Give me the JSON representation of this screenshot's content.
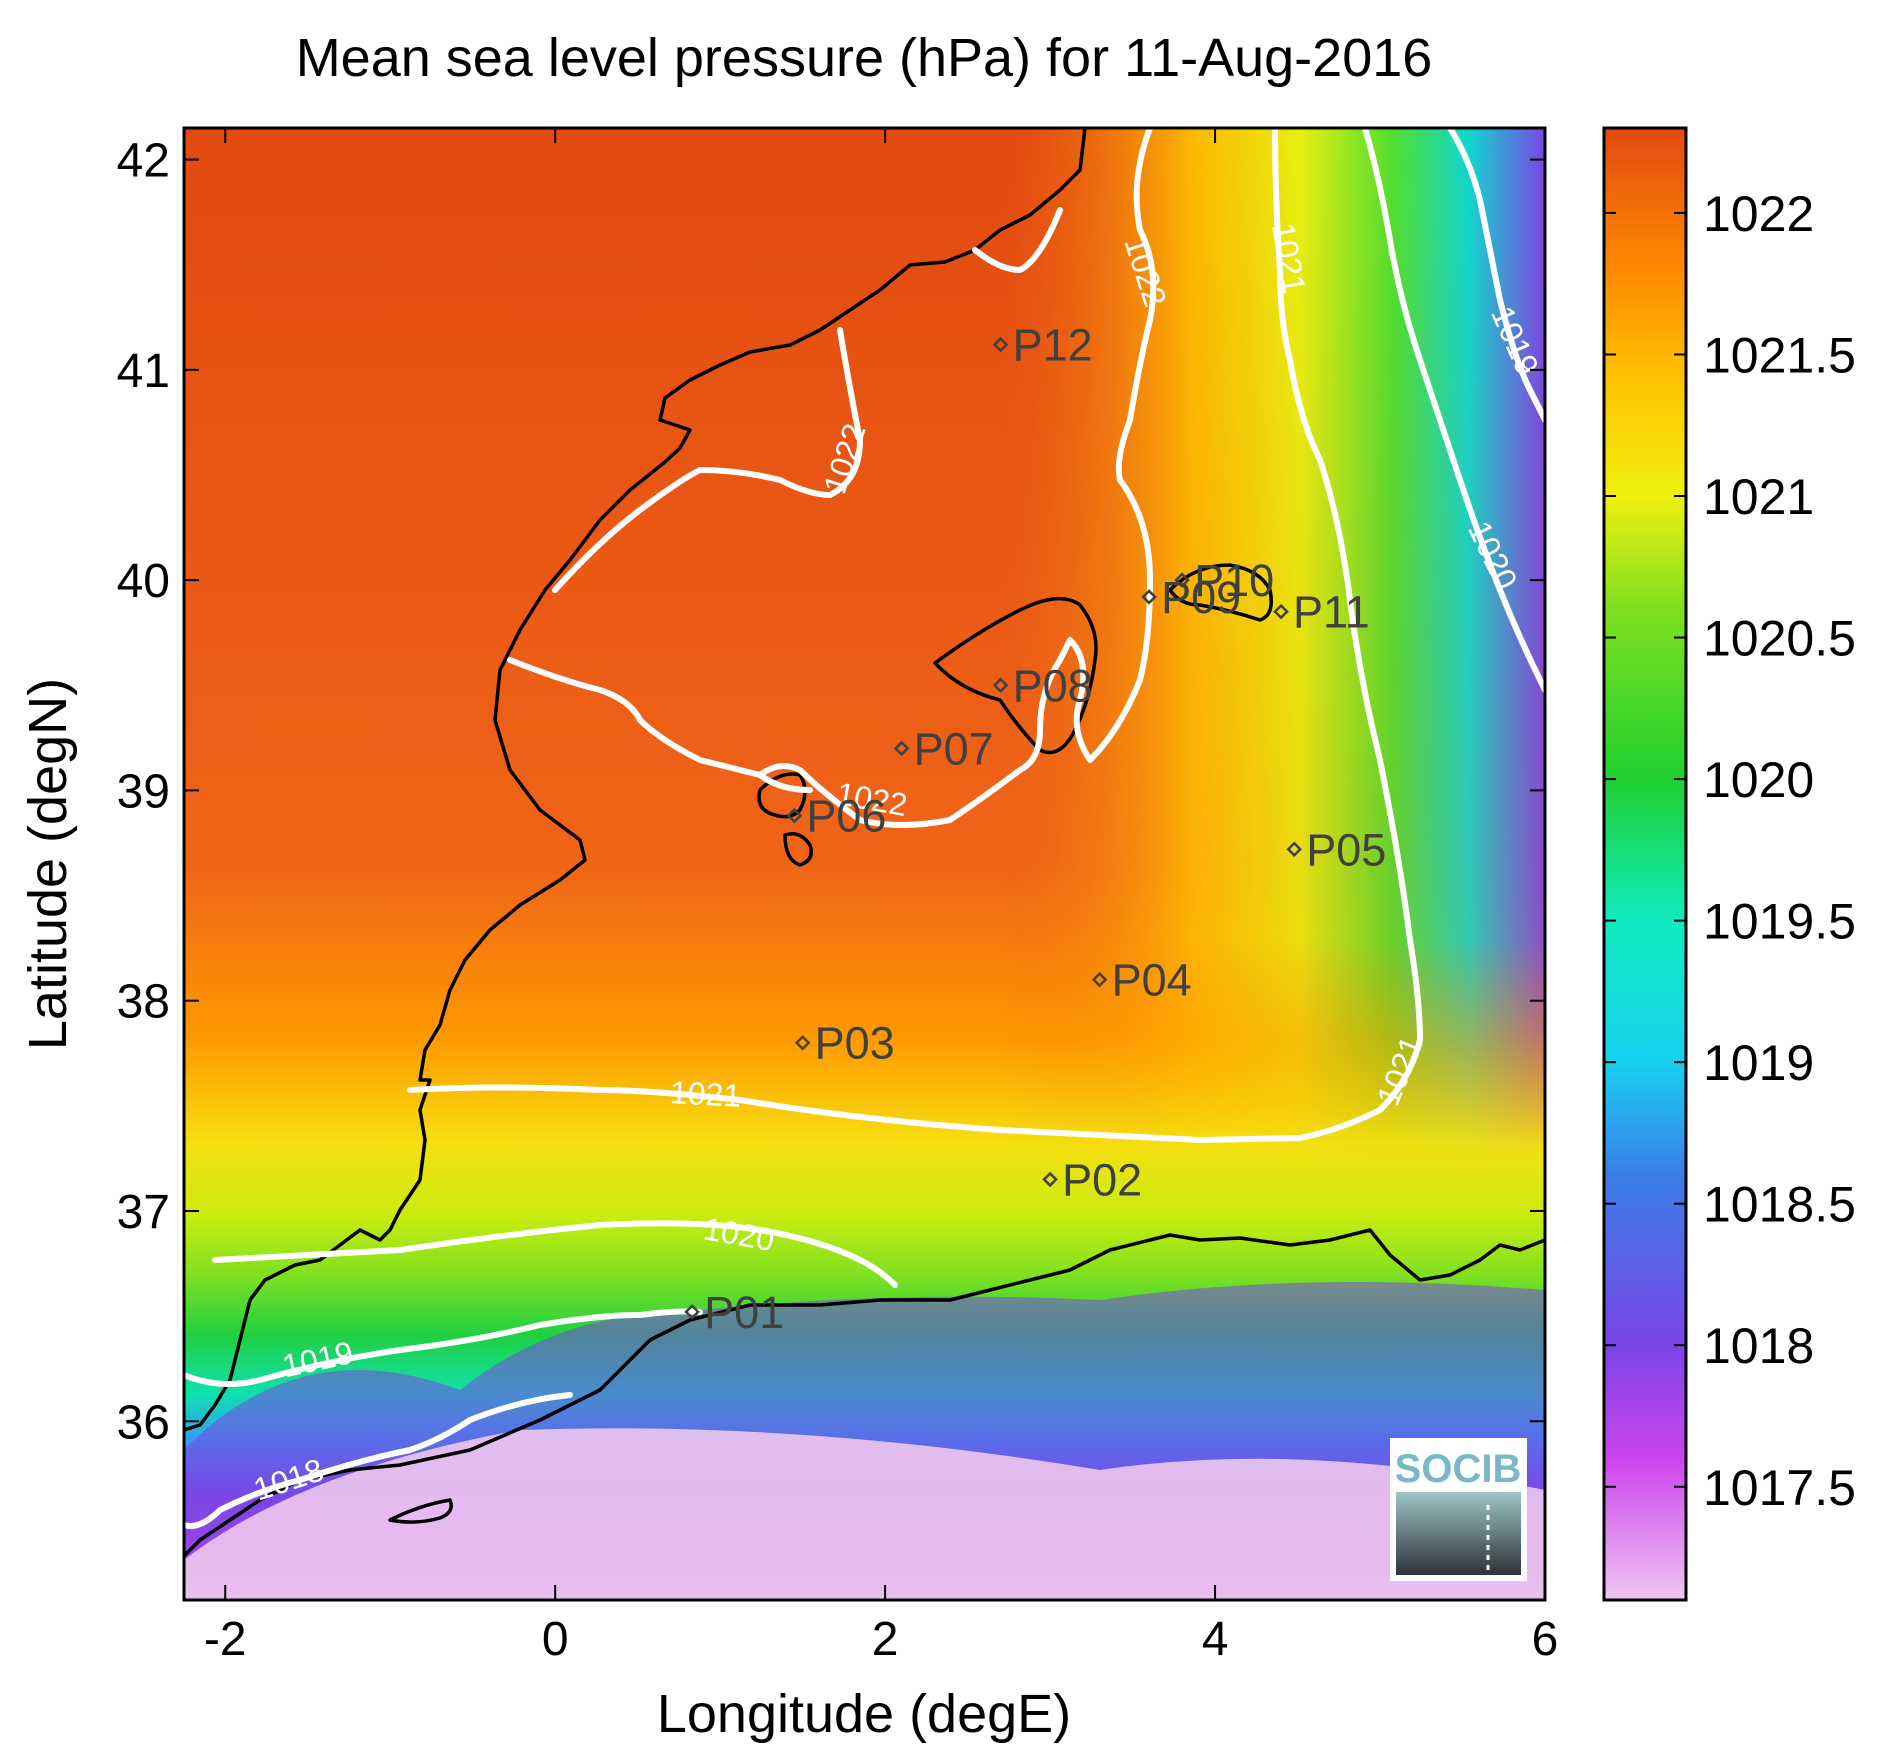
{
  "title": "Mean sea level pressure (hPa) for 11-Aug-2016",
  "xlabel": "Longitude (degE)",
  "ylabel": "Latitude (degN)",
  "x_ticks": [
    "-2",
    "0",
    "2",
    "4",
    "6"
  ],
  "y_ticks": [
    "42",
    "41",
    "40",
    "39",
    "38",
    "37",
    "36"
  ],
  "colorbar": {
    "ticks": [
      "1022",
      "1021.5",
      "1021",
      "1020.5",
      "1020",
      "1019.5",
      "1019",
      "1018.5",
      "1018",
      "1017.5"
    ],
    "range": [
      1017.1,
      1022.3
    ],
    "colors": {
      "1017.1": "#f0c6f0",
      "1017.6": "#cc44ee",
      "1018.0": "#7a45e6",
      "1018.6": "#3a7ee8",
      "1019.0": "#18d0f0",
      "1019.5": "#10ecc0",
      "1020.0": "#20d030",
      "1020.6": "#7ee020",
      "1021.0": "#f0f010",
      "1021.4": "#ffc400",
      "1021.8": "#ff8a00",
      "1022.3": "#e24a10"
    }
  },
  "contour_labels": [
    "1022",
    "1022",
    "1022",
    "1021",
    "1021",
    "1021",
    "1020",
    "1020",
    "1019",
    "1019",
    "1018"
  ],
  "stations": [
    {
      "id": "P01",
      "lon": 0.83,
      "lat": 36.52
    },
    {
      "id": "P02",
      "lon": 3.0,
      "lat": 37.15
    },
    {
      "id": "P03",
      "lon": 1.5,
      "lat": 37.8
    },
    {
      "id": "P04",
      "lon": 3.3,
      "lat": 38.1
    },
    {
      "id": "P05",
      "lon": 4.48,
      "lat": 38.72
    },
    {
      "id": "P06",
      "lon": 1.45,
      "lat": 38.88
    },
    {
      "id": "P07",
      "lon": 2.1,
      "lat": 39.2
    },
    {
      "id": "P08",
      "lon": 2.7,
      "lat": 39.5
    },
    {
      "id": "P09",
      "lon": 3.6,
      "lat": 39.92
    },
    {
      "id": "P10",
      "lon": 3.8,
      "lat": 40.0
    },
    {
      "id": "P11",
      "lon": 4.4,
      "lat": 39.85
    },
    {
      "id": "P12",
      "lon": 2.7,
      "lat": 41.12
    }
  ],
  "logo": {
    "text": "SOCIB"
  }
}
